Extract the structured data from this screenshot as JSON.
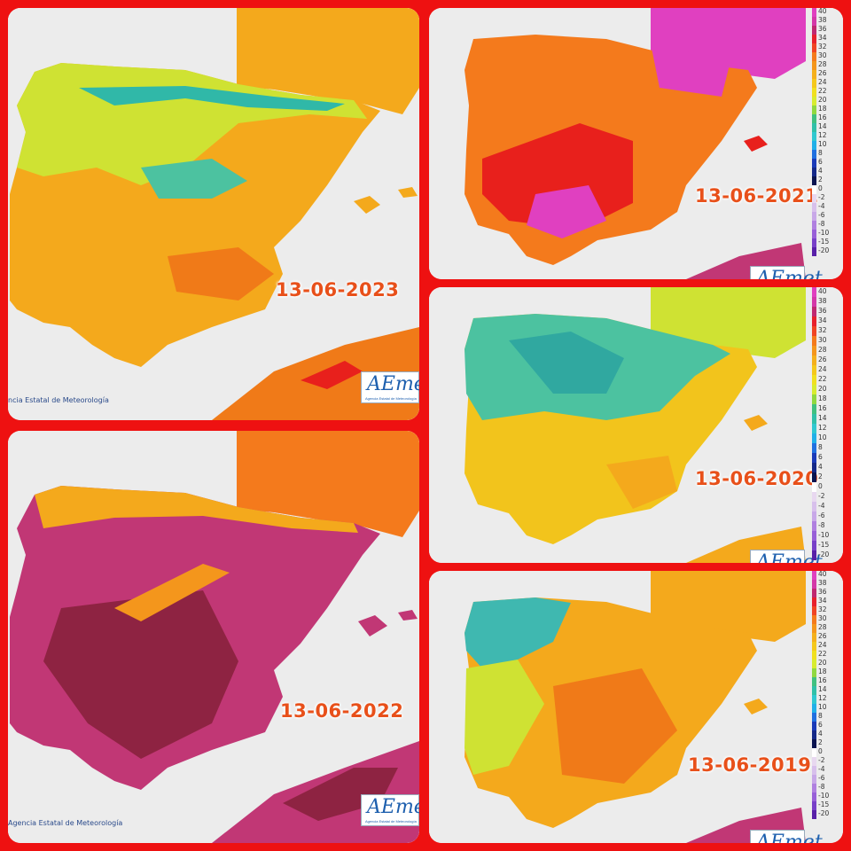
{
  "panels": [
    {
      "id": "p2023",
      "date": "13-06-2023",
      "credit": "ncia Estatal de Meteorología",
      "logo_text": "AEmet",
      "logo_sub": "Agencia Estatal de Meteorología",
      "land": "#f4a91c",
      "north": "#cfe233",
      "hot": "#f07a18",
      "sea": "#ececec"
    },
    {
      "id": "p2022",
      "date": "13-06-2022",
      "credit": "Agencia Estatal de Meteorología",
      "logo_text": "AEmet",
      "logo_sub": "Agencia Estatal de Meteorología",
      "land": "#c13775",
      "north": "#f2a020",
      "hot": "#8e2342",
      "sea": "#ececec"
    },
    {
      "id": "p2021",
      "date": "13-06-2021",
      "logo_text": "AEmet",
      "land": "#f47a1c",
      "north": "#f4a91c",
      "hot": "#e8201c",
      "sea": "#ececec"
    },
    {
      "id": "p2020",
      "date": "13-06-2020",
      "logo_text": "AEmet",
      "land": "#f2c41c",
      "north": "#4cc2a0",
      "hot": "#f4a91c",
      "sea": "#ececec"
    },
    {
      "id": "p2019",
      "date": "13-06-2019",
      "logo_text": "AEmet",
      "land": "#f4a91c",
      "north": "#3fb8b0",
      "hot": "#f07a18",
      "sea": "#ececec"
    }
  ],
  "scale": {
    "labels": [
      "40",
      "38",
      "36",
      "34",
      "32",
      "30",
      "28",
      "26",
      "24",
      "22",
      "20",
      "18",
      "16",
      "14",
      "12",
      "10",
      "8",
      "6",
      "4",
      "2",
      "0",
      "-2",
      "-4",
      "-6",
      "-8",
      "-10",
      "-15",
      "-20"
    ],
    "colors": [
      "#e040c0",
      "#d438a8",
      "#c02870",
      "#e8202c",
      "#f04424",
      "#f47a1c",
      "#f4961c",
      "#f4b01c",
      "#f4c81c",
      "#f0e020",
      "#d8ec30",
      "#90d840",
      "#40c080",
      "#30c0a8",
      "#30c8d0",
      "#20b0e8",
      "#2070e0",
      "#1a3ab8",
      "#142888",
      "#0a1450",
      "#ffffff",
      "#e8d8f0",
      "#d8c0ec",
      "#c8a8e8",
      "#b080e0",
      "#9860d8",
      "#7840c8",
      "#5820a8"
    ]
  }
}
